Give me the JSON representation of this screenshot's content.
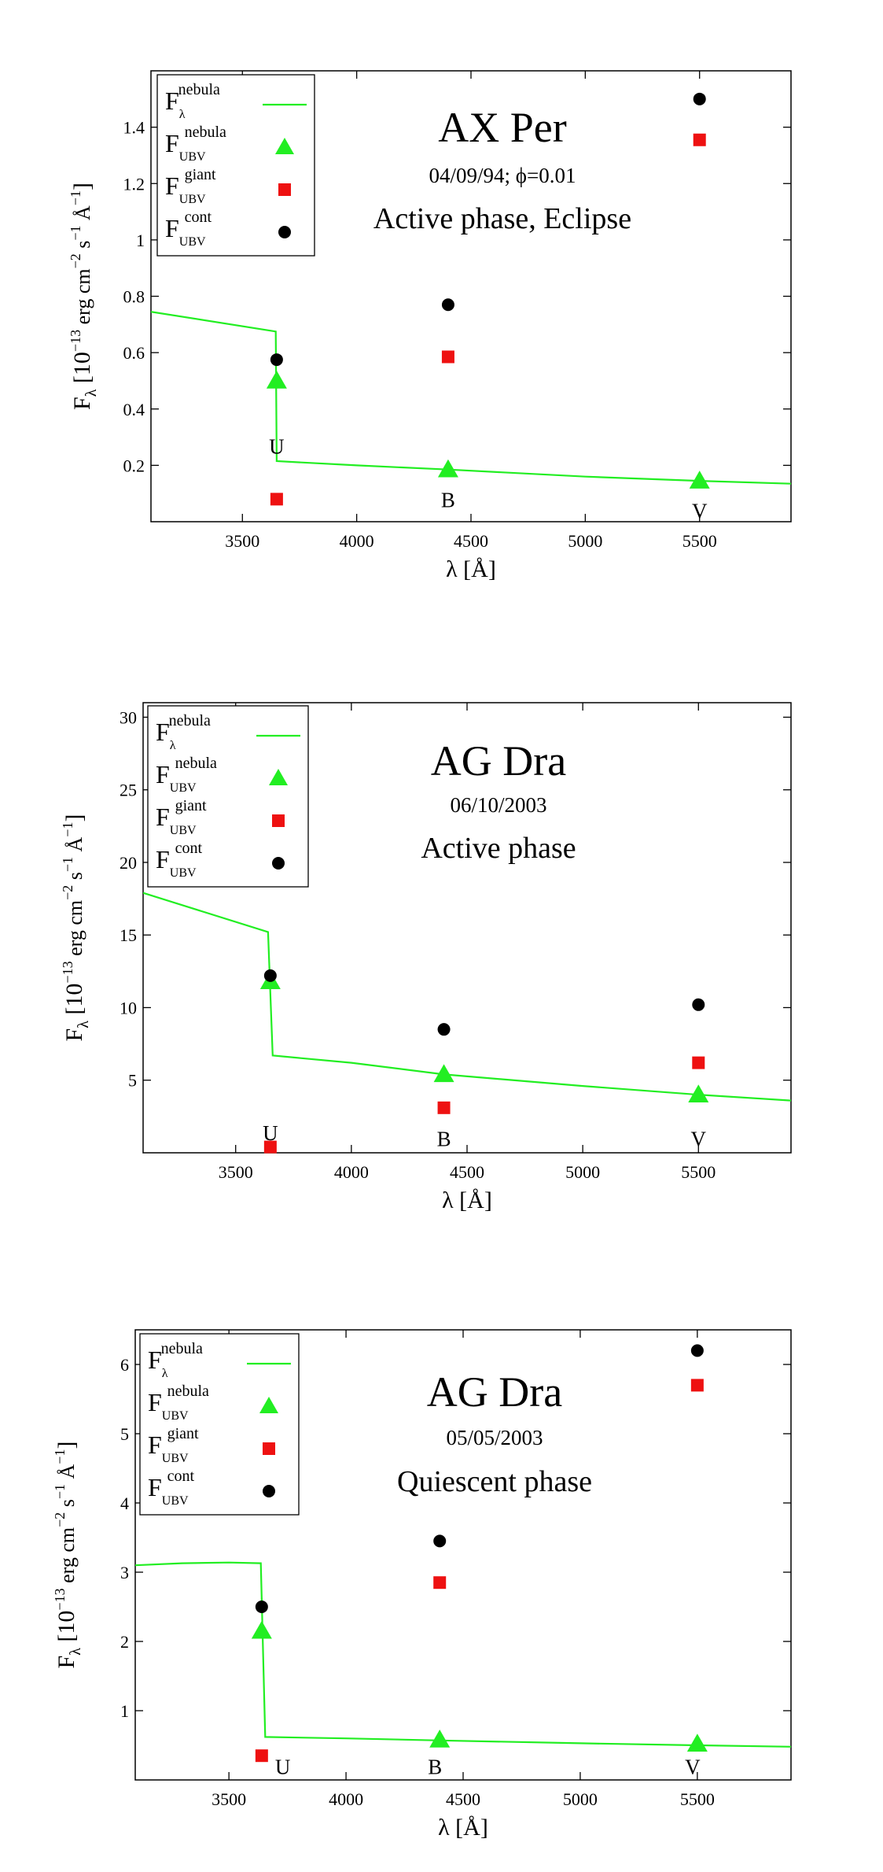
{
  "figure": {
    "common": {
      "xlabel_base": "λ [Å]",
      "ylabel_main": "F",
      "ylabel_sub": "λ",
      "ylabel_rest": " [10",
      "ylabel_exp1": "−13",
      "ylabel_mid": " erg cm",
      "ylabel_exp2": "−2",
      "ylabel_s": " s",
      "ylabel_exp3": "−1",
      "ylabel_A": " Å",
      "ylabel_exp4": "−1",
      "ylabel_end": "]",
      "legend": [
        {
          "main": "F",
          "sub": "λ",
          "sup": "nebula",
          "marker": "line"
        },
        {
          "main": "F",
          "sub": "UBV",
          "sup": "nebula",
          "marker": "triangle"
        },
        {
          "main": "F",
          "sub": "UBV",
          "sup": "giant",
          "marker": "square"
        },
        {
          "main": "F",
          "sub": "UBV",
          "sup": "cont",
          "marker": "circle"
        }
      ],
      "colors": {
        "nebula": "#22ee22",
        "giant": "#ee1111",
        "cont": "#000000",
        "frame": "#000000"
      }
    }
  },
  "chart_data": [
    {
      "type": "scatter",
      "title": "AX Per",
      "subtitle": "04/09/94; ϕ=0.01",
      "phase_label": "Active phase, Eclipse",
      "xlim": [
        3100,
        5900
      ],
      "ylim": [
        0,
        1.6
      ],
      "xticks": [
        3500,
        4000,
        4500,
        5000,
        5500
      ],
      "xtick_labels": [
        "3500",
        "4000",
        "4500",
        "5000",
        "5500"
      ],
      "yticks": [
        0.2,
        0.4,
        0.6,
        0.8,
        1,
        1.2,
        1.4
      ],
      "ytick_labels": [
        "0.2",
        "0.4",
        "0.6",
        "0.8",
        "1",
        "1.2",
        "1.4"
      ],
      "nebula_curve": [
        [
          3100,
          0.745
        ],
        [
          3646,
          0.675
        ],
        [
          3650,
          0.215
        ],
        [
          4000,
          0.2
        ],
        [
          4400,
          0.185
        ],
        [
          5000,
          0.16
        ],
        [
          5500,
          0.145
        ],
        [
          5900,
          0.135
        ]
      ],
      "nebula_ubv": [
        {
          "x": 3650,
          "y": 0.5
        },
        {
          "x": 4400,
          "y": 0.185
        },
        {
          "x": 5500,
          "y": 0.145
        }
      ],
      "giant_ubv": [
        {
          "x": 3650,
          "y": 0.08
        },
        {
          "x": 4400,
          "y": 0.585
        },
        {
          "x": 5500,
          "y": 1.355
        }
      ],
      "cont_ubv": [
        {
          "x": 3650,
          "y": 0.575
        },
        {
          "x": 4400,
          "y": 0.77
        },
        {
          "x": 5500,
          "y": 1.5
        }
      ],
      "band_labels": [
        {
          "text": "U",
          "x": 3650,
          "y": 0.27
        },
        {
          "text": "B",
          "x": 4400,
          "y": 0.08
        },
        {
          "text": "V",
          "x": 5500,
          "y": 0.04
        }
      ]
    },
    {
      "type": "scatter",
      "title": "AG Dra",
      "subtitle": "06/10/2003",
      "phase_label": "Active phase",
      "xlim": [
        3100,
        5900
      ],
      "ylim": [
        0,
        31
      ],
      "xticks": [
        3500,
        4000,
        4500,
        5000,
        5500
      ],
      "xtick_labels": [
        "3500",
        "4000",
        "4500",
        "5000",
        "5500"
      ],
      "yticks": [
        5,
        10,
        15,
        20,
        25,
        30
      ],
      "ytick_labels": [
        "5",
        "10",
        "15",
        "20",
        "25",
        "30"
      ],
      "nebula_curve": [
        [
          3100,
          17.9
        ],
        [
          3640,
          15.2
        ],
        [
          3660,
          6.7
        ],
        [
          4000,
          6.2
        ],
        [
          4400,
          5.4
        ],
        [
          5000,
          4.6
        ],
        [
          5500,
          4.0
        ],
        [
          5900,
          3.6
        ]
      ],
      "nebula_ubv": [
        {
          "x": 3650,
          "y": 11.8
        },
        {
          "x": 4400,
          "y": 5.4
        },
        {
          "x": 5500,
          "y": 4.0
        }
      ],
      "giant_ubv": [
        {
          "x": 3650,
          "y": 0.4
        },
        {
          "x": 4400,
          "y": 3.1
        },
        {
          "x": 5500,
          "y": 6.2
        }
      ],
      "cont_ubv": [
        {
          "x": 3650,
          "y": 12.2
        },
        {
          "x": 4400,
          "y": 8.5
        },
        {
          "x": 5500,
          "y": 10.2
        }
      ],
      "band_labels": [
        {
          "text": "U",
          "x": 3650,
          "y": 1.4
        },
        {
          "text": "B",
          "x": 4400,
          "y": 1.0
        },
        {
          "text": "V",
          "x": 5500,
          "y": 1.0
        }
      ]
    },
    {
      "type": "scatter",
      "title": "AG Dra",
      "subtitle": "05/05/2003",
      "phase_label": "Quiescent phase",
      "xlim": [
        3100,
        5900
      ],
      "ylim": [
        0,
        6.5
      ],
      "xticks": [
        3500,
        4000,
        4500,
        5000,
        5500
      ],
      "xtick_labels": [
        "3500",
        "4000",
        "4500",
        "5000",
        "5500"
      ],
      "yticks": [
        1,
        2,
        3,
        4,
        5,
        6
      ],
      "ytick_labels": [
        "1",
        "2",
        "3",
        "4",
        "5",
        "6"
      ],
      "nebula_curve": [
        [
          3100,
          3.1
        ],
        [
          3300,
          3.13
        ],
        [
          3500,
          3.14
        ],
        [
          3636,
          3.13
        ],
        [
          3655,
          0.62
        ],
        [
          4000,
          0.6
        ],
        [
          4400,
          0.57
        ],
        [
          5000,
          0.53
        ],
        [
          5500,
          0.5
        ],
        [
          5900,
          0.48
        ]
      ],
      "nebula_ubv": [
        {
          "x": 3640,
          "y": 2.15
        },
        {
          "x": 4400,
          "y": 0.58
        },
        {
          "x": 5500,
          "y": 0.52
        }
      ],
      "giant_ubv": [
        {
          "x": 3640,
          "y": 0.35
        },
        {
          "x": 4400,
          "y": 2.85
        },
        {
          "x": 5500,
          "y": 5.7
        }
      ],
      "cont_ubv": [
        {
          "x": 3640,
          "y": 2.5
        },
        {
          "x": 4400,
          "y": 3.45
        },
        {
          "x": 5500,
          "y": 6.2
        }
      ],
      "band_labels": [
        {
          "text": "U",
          "x": 3730,
          "y": 0.2
        },
        {
          "text": "B",
          "x": 4380,
          "y": 0.2
        },
        {
          "text": "V",
          "x": 5480,
          "y": 0.2
        }
      ]
    }
  ]
}
